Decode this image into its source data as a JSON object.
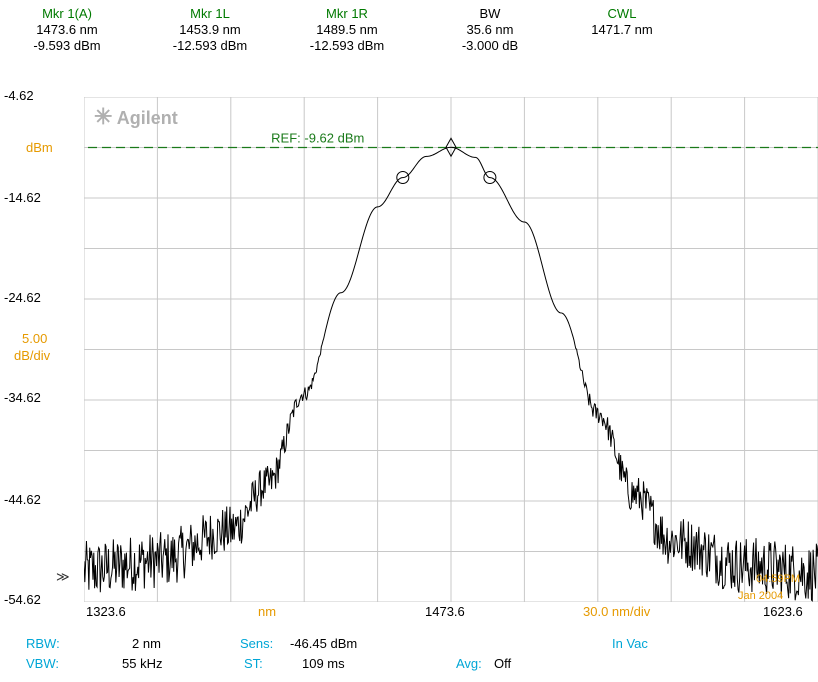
{
  "markers": [
    {
      "title": "Mkr 1(A)",
      "line1": "1473.6 nm",
      "line2": "-9.593 dBm"
    },
    {
      "title": "Mkr 1L",
      "line1": "1453.9 nm",
      "line2": "-12.593 dBm"
    },
    {
      "title": "Mkr 1R",
      "line1": "1489.5 nm",
      "line2": "-12.593 dBm"
    },
    {
      "title": "BW",
      "line1": "35.6 nm",
      "line2": "-3.000 dB"
    },
    {
      "title": "CWL",
      "line1": "1471.7 nm",
      "line2": ""
    }
  ],
  "brand": "Agilent",
  "ref_label": "REF: -9.62 dBm",
  "y_unit": "dBm",
  "y_scale": "5.00",
  "y_scale_unit": "dB/div",
  "ref_arrow": "≫",
  "x_unit": "nm",
  "x_scale": "30.0 nm/div",
  "timestamp_time": "04:59PM",
  "timestamp_date": "Jan 2004",
  "status": {
    "rbw_label": "RBW:",
    "rbw_value": "2 nm",
    "sens_label": "Sens:",
    "sens_value": "-46.45 dBm",
    "vbw_label": "VBW:",
    "vbw_value": "55 kHz",
    "st_label": "ST:",
    "st_value": "109 ms",
    "avg_label": "Avg:",
    "avg_value": "Off",
    "medium": "In Vac"
  },
  "colors": {
    "grid": "#c8c8c8",
    "trace": "#000000",
    "ref": "#1a7a1a",
    "label_orange": "#e69a00",
    "label_cyan": "#00a6d6",
    "marker_green": "#007a00"
  },
  "chart_data": {
    "type": "line",
    "xlabel": "nm",
    "ylabel": "dBm",
    "xlim": [
      1323.6,
      1623.6
    ],
    "ylim": [
      -54.62,
      -4.62
    ],
    "x_ticks": [
      "1323.6",
      "1473.6",
      "1623.6"
    ],
    "y_ticks": [
      "-4.62",
      "-14.62",
      "-24.62",
      "-34.62",
      "-44.62",
      "-54.62"
    ],
    "grid": true,
    "reference_level": -9.62,
    "series": [
      {
        "x": [
          1323.6,
          1353.6,
          1383.6,
          1398.6,
          1413.6,
          1428.6,
          1443.6,
          1453.9,
          1463.6,
          1473.6,
          1483.6,
          1489.5,
          1503.6,
          1518.6,
          1533.6,
          1548.6,
          1563.6,
          1593.6,
          1623.6
        ],
        "y": [
          -51.5,
          -50.5,
          -47.5,
          -43.0,
          -34.0,
          -24.0,
          -15.5,
          -12.6,
          -10.5,
          -9.6,
          -10.6,
          -12.6,
          -17.0,
          -26.0,
          -36.0,
          -44.0,
          -48.5,
          -51.0,
          -51.8
        ]
      }
    ],
    "markers": [
      {
        "name": "Mkr 1(A)",
        "x": 1473.6,
        "y": -9.593
      },
      {
        "name": "Mkr 1L",
        "x": 1453.9,
        "y": -12.593
      },
      {
        "name": "Mkr 1R",
        "x": 1489.5,
        "y": -12.593
      }
    ]
  }
}
